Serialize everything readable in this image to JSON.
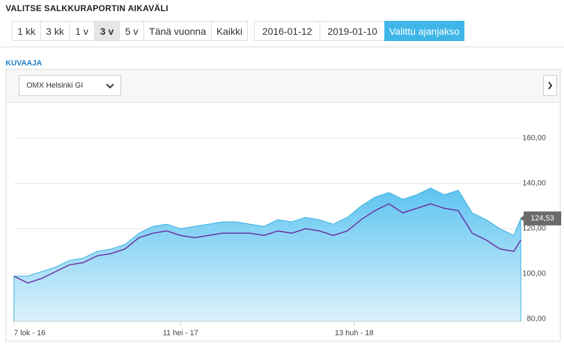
{
  "header": {
    "title": "VALITSE SALKKURAPORTIN AIKAVÄLI"
  },
  "periods": {
    "buttons": [
      "1 kk",
      "3 kk",
      "1 v",
      "3 v",
      "5 v",
      "Tänä vuonna",
      "Kaikki"
    ],
    "selected": 3
  },
  "range": {
    "start": "2016-01-12",
    "end": "2019-01-10",
    "button": "Valittu ajanjakso"
  },
  "section": {
    "title": "KUVAAJA"
  },
  "chart_data": {
    "type": "area",
    "x": [
      0,
      2,
      4,
      6,
      8,
      10,
      12,
      14,
      16,
      18,
      20,
      22,
      24,
      26,
      28,
      30,
      32,
      34,
      36,
      38,
      40,
      42,
      44,
      46,
      48,
      50,
      52,
      54,
      56,
      58,
      60,
      62,
      64,
      66,
      68,
      70,
      72,
      73
    ],
    "series": [
      {
        "color": "#3ab0e0",
        "values": [
          99,
          99,
          101,
          103,
          106,
          107,
          110,
          111,
          113,
          118,
          121,
          122,
          120,
          121,
          122,
          123,
          123,
          122,
          121,
          124,
          123,
          125,
          124,
          122,
          125,
          130,
          134,
          136,
          133,
          135,
          138,
          135,
          137,
          127,
          124,
          120,
          117,
          124.53
        ],
        "value_labels": [
          null,
          null,
          null,
          null,
          null,
          null,
          null,
          null,
          null,
          null,
          null,
          null,
          null,
          null,
          null,
          null,
          null,
          null,
          null,
          null,
          null,
          null,
          null,
          null,
          null,
          null,
          null,
          null,
          null,
          null,
          null,
          null,
          null,
          null,
          null,
          null,
          null,
          "124,53"
        ]
      },
      {
        "name": "OMX Helsinki GI",
        "color": "#6a2ba0",
        "values": [
          99,
          96,
          98,
          101,
          104,
          105,
          108,
          109,
          111,
          116,
          118,
          119,
          117,
          116,
          117,
          118,
          118,
          118,
          117,
          119,
          118,
          120,
          119,
          117,
          119,
          124,
          128,
          131,
          127,
          129,
          131,
          129,
          128,
          118,
          115,
          111,
          110,
          115
        ]
      }
    ],
    "xlim": [
      0,
      73
    ],
    "xticks": [
      {
        "value": 0,
        "label": "7 lok - 16"
      },
      {
        "value": 24,
        "label": "11 hei - 17"
      },
      {
        "value": 49,
        "label": "13 huh - 18"
      }
    ],
    "ylim": [
      79,
      175
    ],
    "yticks": [
      {
        "value": 80,
        "label": "80,00"
      },
      {
        "value": 100,
        "label": "100,00"
      },
      {
        "value": 120,
        "label": "120,00"
      },
      {
        "value": 140,
        "label": "140,00"
      },
      {
        "value": 160,
        "label": "160,00"
      }
    ],
    "grid": true
  }
}
